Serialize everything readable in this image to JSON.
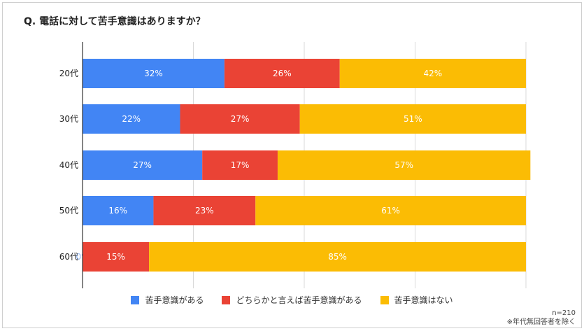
{
  "title": "Q. 電話に対して苦手意識はありますか？",
  "note": {
    "n": "n=210",
    "exclusion": "※年代無回答者を除く"
  },
  "chart_data": {
    "type": "bar",
    "orientation": "horizontal",
    "stacked": true,
    "title": "Q. 電話に対して苦手意識はありますか？",
    "categories": [
      "20代",
      "30代",
      "40代",
      "50代",
      "60代"
    ],
    "series": [
      {
        "name": "苦手意識がある",
        "color": "#4285f4",
        "values": [
          32,
          22,
          27,
          16,
          0
        ]
      },
      {
        "name": "どちらかと言えば苦手意識がある",
        "color": "#ea4335",
        "values": [
          26,
          27,
          17,
          23,
          15
        ]
      },
      {
        "name": "苦手意識はない",
        "color": "#fbbc04",
        "values": [
          42,
          51,
          57,
          61,
          85
        ]
      }
    ],
    "xlim": [
      0,
      100
    ],
    "grid": true,
    "data_labels": "percent",
    "legend": "bottom"
  }
}
